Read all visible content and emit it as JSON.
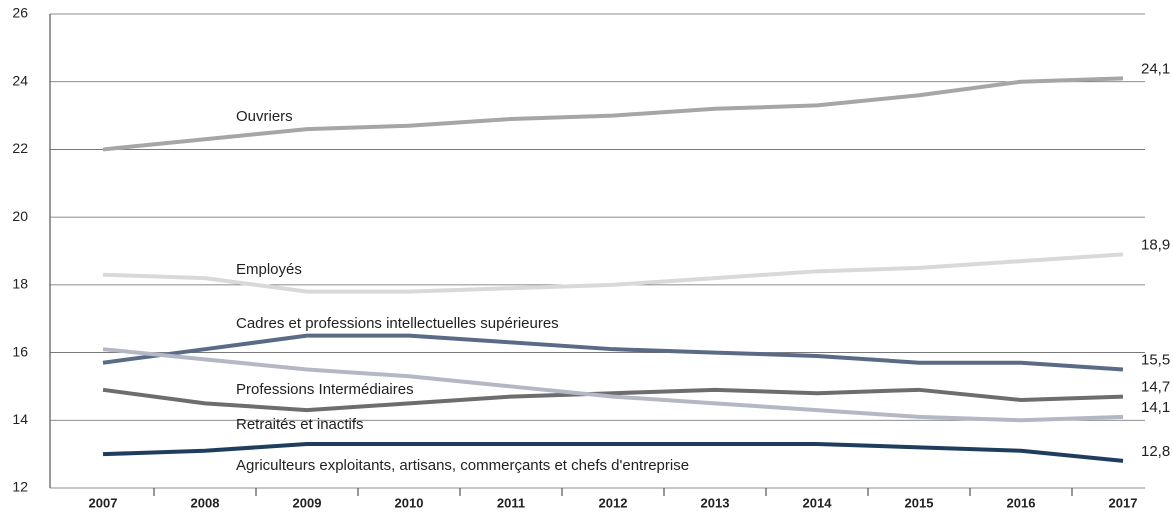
{
  "chart_data": {
    "type": "line",
    "categories": [
      "2007",
      "2008",
      "2009",
      "2010",
      "2011",
      "2012",
      "2013",
      "2014",
      "2015",
      "2016",
      "2017"
    ],
    "series": [
      {
        "name": "Ouvriers",
        "color": "#a6a6a6",
        "values": [
          22.0,
          22.3,
          22.6,
          22.7,
          22.9,
          23.0,
          23.2,
          23.3,
          23.6,
          24.0,
          24.1
        ],
        "value_labels": [
          null,
          null,
          null,
          null,
          null,
          null,
          null,
          null,
          null,
          null,
          "24,1"
        ]
      },
      {
        "name": "Employés",
        "color": "#d9d9dc",
        "values": [
          18.3,
          18.2,
          17.8,
          17.8,
          17.9,
          18.0,
          18.2,
          18.4,
          18.5,
          18.7,
          18.9
        ],
        "value_labels": [
          null,
          null,
          null,
          null,
          null,
          null,
          null,
          null,
          null,
          null,
          "18,9"
        ]
      },
      {
        "name": "Cadres et professions intellectuelles supérieures",
        "color": "#5b6b85",
        "values": [
          15.7,
          16.1,
          16.5,
          16.5,
          16.3,
          16.1,
          16.0,
          15.9,
          15.7,
          15.7,
          15.5
        ],
        "value_labels": [
          null,
          null,
          null,
          null,
          null,
          null,
          null,
          null,
          null,
          null,
          "15,5"
        ]
      },
      {
        "name": "Professions Intermédiaires",
        "color": "#6d6d6d",
        "values": [
          14.9,
          14.5,
          14.3,
          14.5,
          14.7,
          14.8,
          14.9,
          14.8,
          14.9,
          14.6,
          14.7
        ],
        "value_labels": [
          null,
          null,
          null,
          null,
          null,
          null,
          null,
          null,
          null,
          null,
          "14,7"
        ]
      },
      {
        "name": "Retraités et inactifs",
        "color": "#b4b8c4",
        "values": [
          16.1,
          15.8,
          15.5,
          15.3,
          15.0,
          14.7,
          14.5,
          14.3,
          14.1,
          14.0,
          14.1
        ],
        "value_labels": [
          null,
          null,
          null,
          null,
          null,
          null,
          null,
          null,
          null,
          null,
          "14,1"
        ]
      },
      {
        "name": "Agriculteurs exploitants, artisans, commerçants et chefs d'entreprise",
        "color": "#1f3e5f",
        "values": [
          13.0,
          13.1,
          13.3,
          13.3,
          13.3,
          13.3,
          13.3,
          13.3,
          13.2,
          13.1,
          12.8
        ],
        "value_labels": [
          null,
          null,
          null,
          null,
          null,
          null,
          null,
          null,
          null,
          null,
          "12,8"
        ]
      }
    ],
    "ylim": [
      12,
      26
    ],
    "yticks": [
      12,
      14,
      16,
      18,
      20,
      22,
      24,
      26
    ],
    "grid": true
  }
}
